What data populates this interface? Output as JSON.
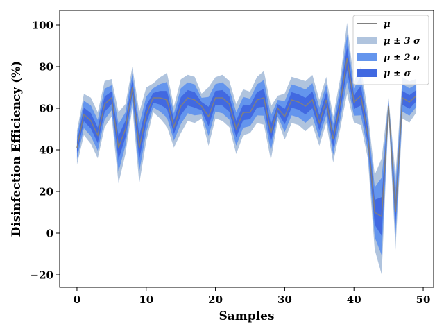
{
  "chart_data": {
    "type": "area",
    "xlabel": "Samples",
    "ylabel": "Disinfection Efficiency (%)",
    "xlim": [
      -2.5,
      51.5
    ],
    "ylim": [
      -26,
      107
    ],
    "xticks": [
      0,
      10,
      20,
      30,
      40,
      50
    ],
    "yticks": [
      -20,
      0,
      20,
      40,
      60,
      80,
      100
    ],
    "grid": false,
    "legend_position": "top-right",
    "x": [
      0,
      1,
      2,
      3,
      4,
      5,
      6,
      7,
      8,
      9,
      10,
      11,
      12,
      13,
      14,
      15,
      16,
      17,
      18,
      19,
      20,
      21,
      22,
      23,
      24,
      25,
      26,
      27,
      28,
      29,
      30,
      31,
      32,
      33,
      34,
      35,
      36,
      37,
      38,
      39,
      40,
      41,
      42,
      43,
      44,
      45,
      46,
      47,
      48,
      49
    ],
    "mu": [
      41,
      57,
      54,
      47,
      62,
      65,
      41,
      50,
      70,
      41,
      57,
      65,
      65,
      64,
      51,
      61,
      65,
      64,
      61,
      56,
      65,
      65,
      62,
      50,
      58,
      58,
      64,
      65,
      48,
      60,
      56,
      64,
      63,
      61,
      64,
      53,
      64,
      45,
      62,
      84,
      63,
      66,
      47,
      10,
      8,
      61,
      10,
      65,
      63,
      66
    ],
    "sigma": [
      2.7,
      3.3,
      3.7,
      3.7,
      3.7,
      3.0,
      5.7,
      4.0,
      3.3,
      5.7,
      4.3,
      2.3,
      3.3,
      4.3,
      3.3,
      4.3,
      3.7,
      3.7,
      2.0,
      4.7,
      3.3,
      3.7,
      3.7,
      4.0,
      3.7,
      3.3,
      3.7,
      4.3,
      4.3,
      2.0,
      3.7,
      3.7,
      3.7,
      4.0,
      4.0,
      3.7,
      3.7,
      3.7,
      4.0,
      5.7,
      3.3,
      4.7,
      3.7,
      6.0,
      9.3,
      1.3,
      6.0,
      3.3,
      3.3,
      2.7
    ],
    "series": [
      {
        "name": "μ",
        "color": "#808080"
      },
      {
        "name": "μ ± 3 σ",
        "color": "#b0c4de"
      },
      {
        "name": "μ ± 2 σ",
        "color": "#6495ed"
      },
      {
        "name": "μ ±  σ",
        "color": "#4169e1"
      }
    ]
  }
}
